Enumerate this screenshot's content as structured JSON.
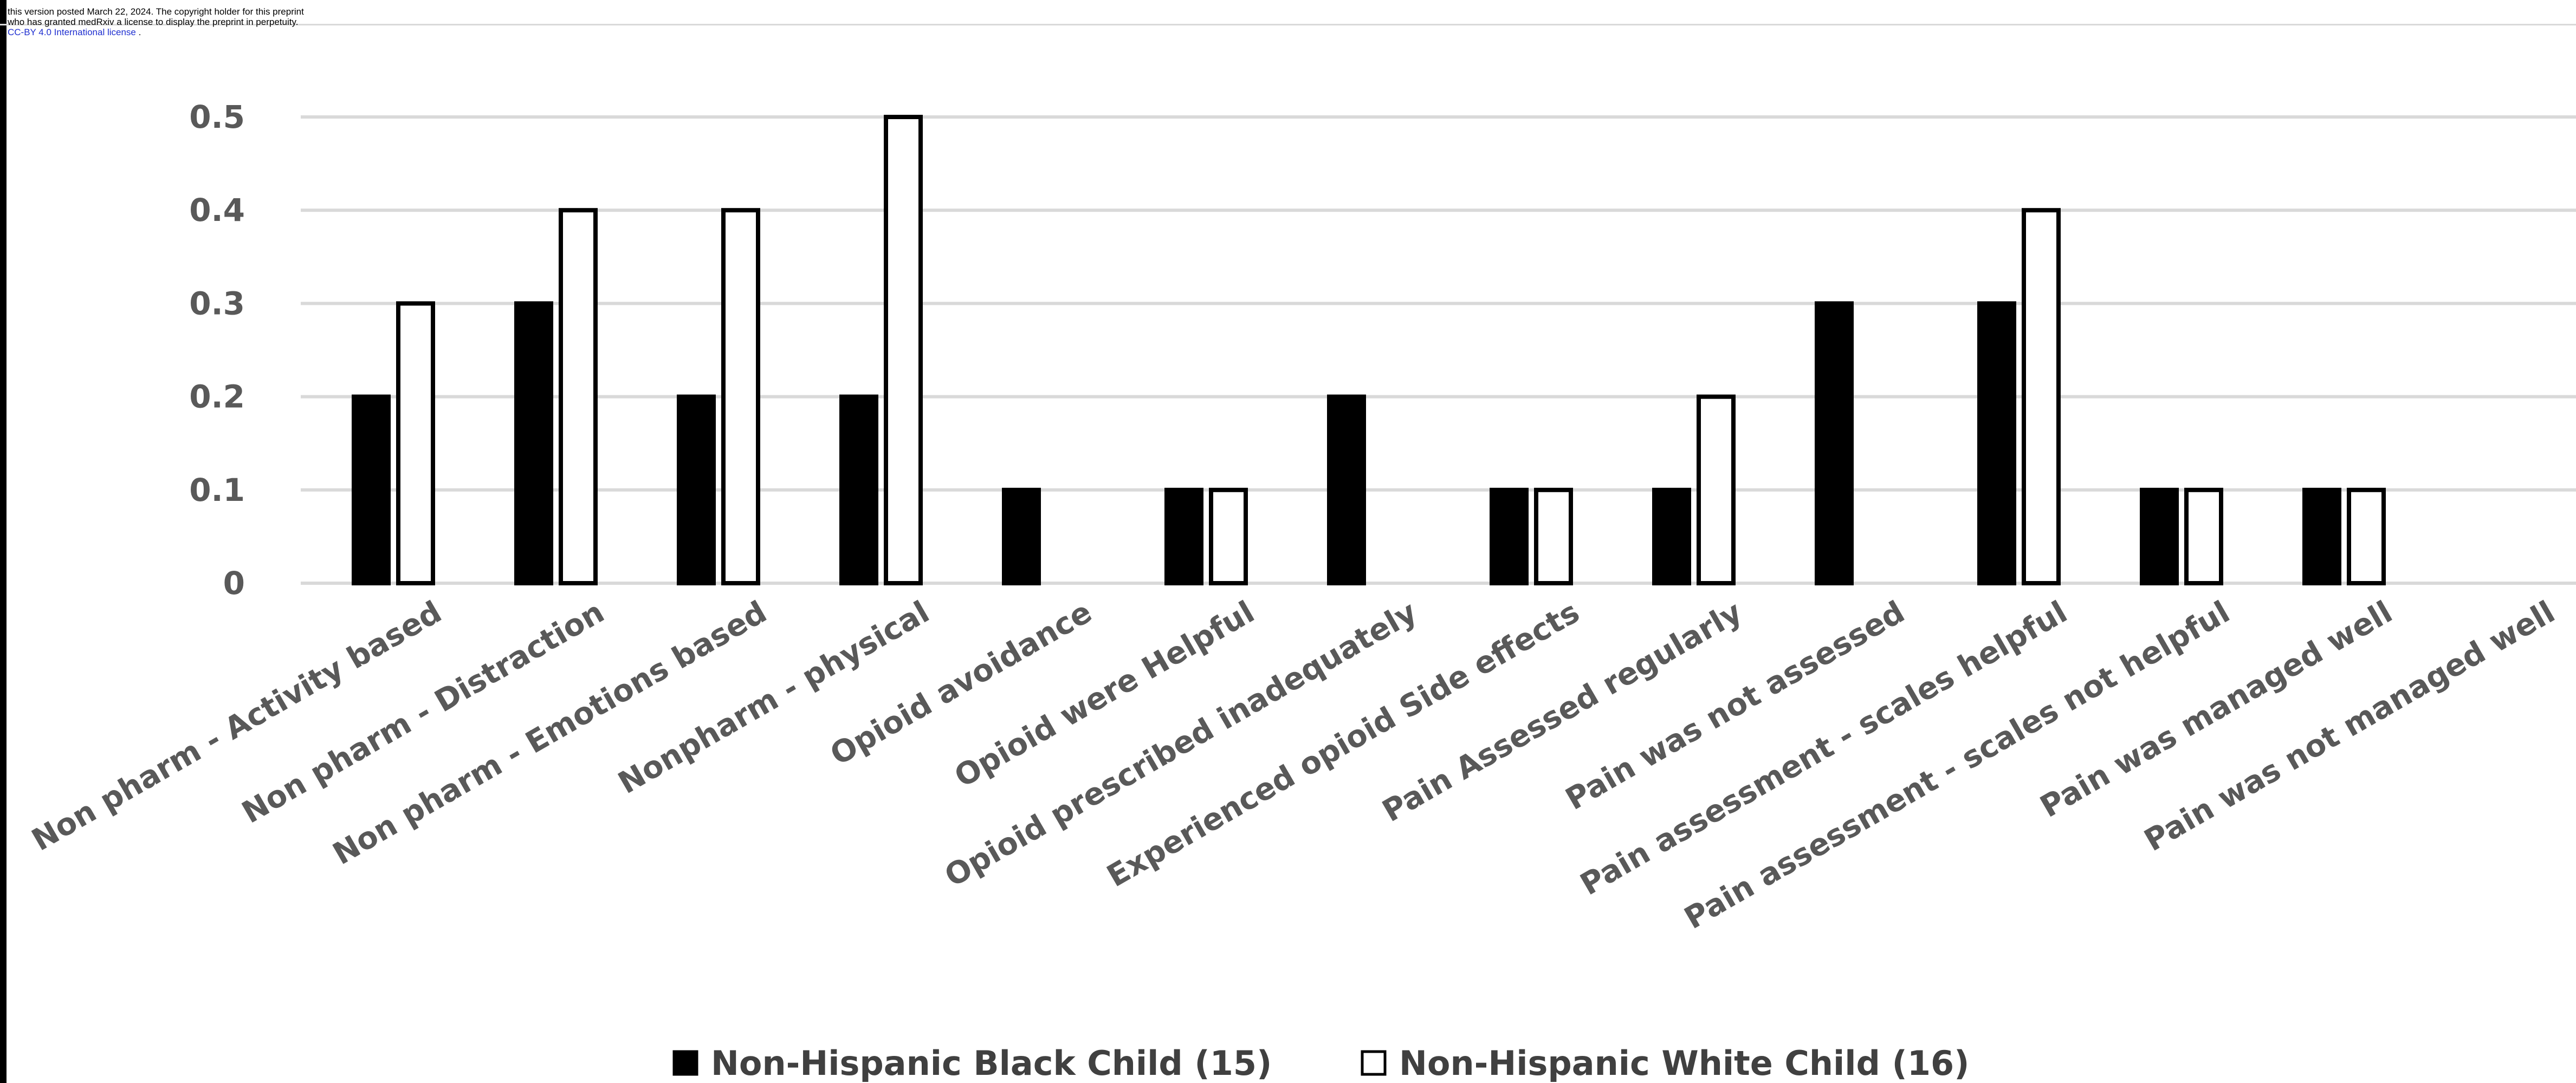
{
  "notice": {
    "line1": "this version posted March 22, 2024. The copyright holder for this preprint",
    "line2": "who has granted medRxiv a license to display the preprint in perpetuity.",
    "line3": "CC-BY 4.0 International license",
    "line3_suffix": " ."
  },
  "colors": {
    "black_series": "#000000",
    "white_series": "#ffffff",
    "bar_outline": "#000000",
    "gridline": "#d9d9d9",
    "label_text": "#595959"
  },
  "chart_data": {
    "type": "bar",
    "title": "",
    "xlabel": "",
    "ylabel": "",
    "ylim": [
      0,
      0.5
    ],
    "yticks": [
      "0",
      "0.1",
      "0.2",
      "0.3",
      "0.4",
      "0.5"
    ],
    "grid": true,
    "legend_position": "bottom",
    "categories": [
      "Non pharm - Activity based",
      "Non pharm - Distraction",
      "Non pharm - Emotions based",
      "Nonpharm - physical",
      "Opioid avoidance",
      "Opioid were Helpful",
      "Opioid prescribed inadequately",
      "Experienced opioid Side effects",
      "Pain Assessed regularly",
      "Pain was not assessed",
      "Pain assessment - scales helpful",
      "Pain assessment - scales not helpful",
      "Pain was managed well",
      "Pain was not managed well"
    ],
    "series": [
      {
        "name": "Non-Hispanic Black Child (15)",
        "values": [
          0.2,
          0.3,
          0.2,
          0.2,
          0.1,
          0.1,
          0.2,
          0.1,
          0.1,
          0.3,
          0.3,
          0.1,
          0.1,
          0
        ]
      },
      {
        "name": "Non-Hispanic White Child (16)",
        "values": [
          0.3,
          0.4,
          0.4,
          0.5,
          0,
          0.1,
          0,
          0.1,
          0.2,
          0,
          0.4,
          0.1,
          0.1,
          0
        ]
      }
    ]
  }
}
